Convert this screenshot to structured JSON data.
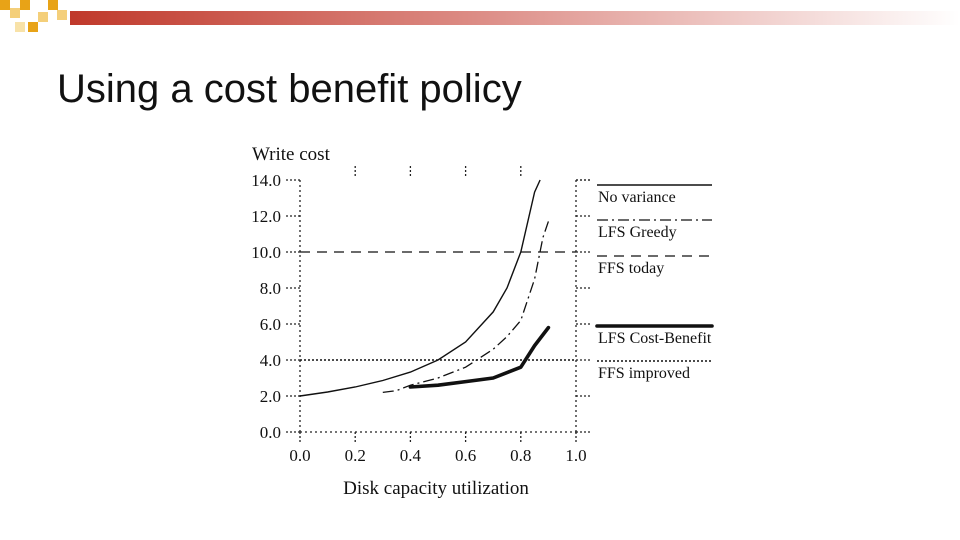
{
  "slide": {
    "title": "Using a cost benefit policy"
  },
  "theme": {
    "accent_orange": "#e8a317",
    "accent_red": "#c0392b",
    "text": "#111111"
  },
  "chart_data": {
    "type": "line",
    "title": "",
    "xlabel": "Disk capacity utilization",
    "ylabel": "Write cost",
    "xlim": [
      0.0,
      1.0
    ],
    "ylim": [
      0.0,
      14.0
    ],
    "xticks": [
      "0.0",
      "0.2",
      "0.4",
      "0.6",
      "0.8",
      "1.0"
    ],
    "yticks": [
      "0.0",
      "2.0",
      "4.0",
      "6.0",
      "8.0",
      "10.0",
      "12.0",
      "14.0"
    ],
    "legend_position": "right",
    "grid": "dotted reference lines at 4.0 and 14.0; dotted frame",
    "series": [
      {
        "name": "No variance",
        "style": "solid-thin",
        "x": [
          0.0,
          0.1,
          0.2,
          0.3,
          0.4,
          0.5,
          0.6,
          0.7,
          0.75,
          0.8,
          0.85,
          0.87
        ],
        "y": [
          2.0,
          2.22,
          2.5,
          2.86,
          3.33,
          4.0,
          5.0,
          6.67,
          8.0,
          10.0,
          13.33,
          14.0
        ]
      },
      {
        "name": "LFS Greedy",
        "style": "dash-dot",
        "x": [
          0.3,
          0.35,
          0.4,
          0.5,
          0.6,
          0.7,
          0.75,
          0.8,
          0.85,
          0.88,
          0.9
        ],
        "y": [
          2.2,
          2.3,
          2.6,
          3.0,
          3.6,
          4.6,
          5.3,
          6.2,
          8.5,
          10.8,
          11.7
        ]
      },
      {
        "name": "FFS today",
        "style": "dashed",
        "x": [
          0.0,
          1.0
        ],
        "y": [
          10.0,
          10.0
        ]
      },
      {
        "name": "LFS Cost-Benefit",
        "style": "solid-thick",
        "x": [
          0.4,
          0.5,
          0.6,
          0.7,
          0.8,
          0.85,
          0.9
        ],
        "y": [
          2.5,
          2.6,
          2.8,
          3.0,
          3.6,
          4.8,
          5.8
        ]
      },
      {
        "name": "FFS improved",
        "style": "dotted",
        "x": [
          0.0,
          1.0
        ],
        "y": [
          4.0,
          4.0
        ]
      }
    ]
  }
}
